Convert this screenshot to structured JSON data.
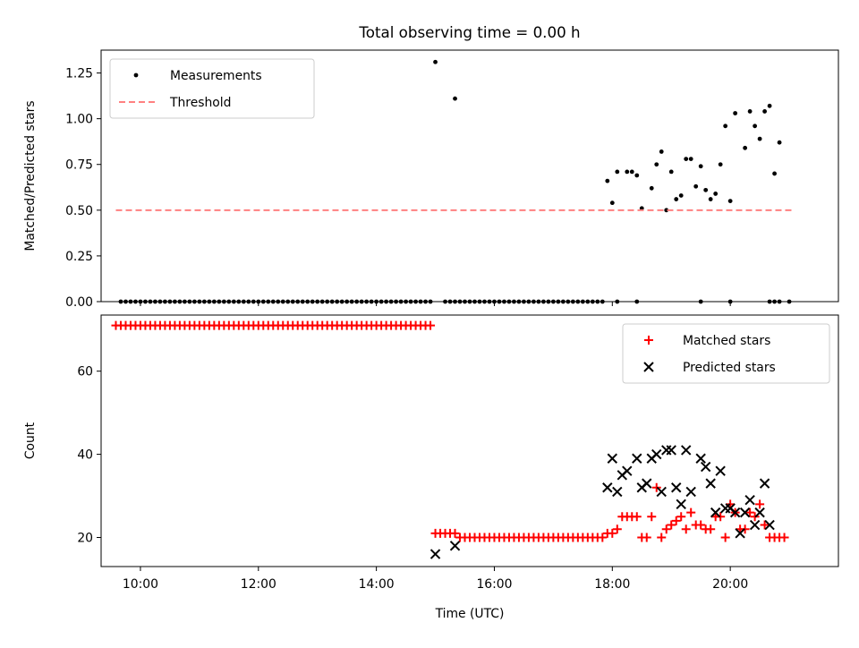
{
  "figure": {
    "title": "Total observing time = 0.00 h"
  },
  "chart_data": [
    {
      "type": "scatter",
      "title": "Total observing time = 0.00 h",
      "xlabel": "",
      "ylabel": "Matched/Predicted stars",
      "xlim": [
        "09:20",
        "21:50"
      ],
      "ylim": [
        0,
        1.375
      ],
      "xticks": [
        "10:00",
        "12:00",
        "14:00",
        "16:00",
        "18:00",
        "20:00"
      ],
      "yticks": [
        "0.00",
        "0.25",
        "0.50",
        "0.75",
        "1.00",
        "1.25"
      ],
      "legend_position": "top-left",
      "grid": false,
      "series": [
        {
          "name": "Measurements",
          "marker": "dot",
          "color": "#000000",
          "zero_times": [
            "09:40",
            "09:45",
            "09:50",
            "09:55",
            "10:00",
            "10:05",
            "10:10",
            "10:15",
            "10:20",
            "10:25",
            "10:30",
            "10:35",
            "10:40",
            "10:45",
            "10:50",
            "10:55",
            "11:00",
            "11:05",
            "11:10",
            "11:15",
            "11:20",
            "11:25",
            "11:30",
            "11:35",
            "11:40",
            "11:45",
            "11:50",
            "11:55",
            "12:00",
            "12:05",
            "12:10",
            "12:15",
            "12:20",
            "12:25",
            "12:30",
            "12:35",
            "12:40",
            "12:45",
            "12:50",
            "12:55",
            "13:00",
            "13:05",
            "13:10",
            "13:15",
            "13:20",
            "13:25",
            "13:30",
            "13:35",
            "13:40",
            "13:45",
            "13:50",
            "13:55",
            "14:00",
            "14:05",
            "14:10",
            "14:15",
            "14:20",
            "14:25",
            "14:30",
            "14:35",
            "14:40",
            "14:45",
            "14:50",
            "14:55",
            "15:10",
            "15:15",
            "15:20",
            "15:25",
            "15:30",
            "15:35",
            "15:40",
            "15:45",
            "15:50",
            "15:55",
            "16:00",
            "16:05",
            "16:10",
            "16:15",
            "16:20",
            "16:25",
            "16:30",
            "16:35",
            "16:40",
            "16:45",
            "16:50",
            "16:55",
            "17:00",
            "17:05",
            "17:10",
            "17:15",
            "17:20",
            "17:25",
            "17:30",
            "17:35",
            "17:40",
            "17:45",
            "17:50",
            "18:05",
            "18:25",
            "19:30",
            "20:00",
            "20:40",
            "20:45",
            "20:50",
            "21:00"
          ],
          "points": [
            [
              "15:00",
              1.31
            ],
            [
              "15:20",
              1.11
            ],
            [
              "17:55",
              0.66
            ],
            [
              "18:00",
              0.54
            ],
            [
              "18:05",
              0.71
            ],
            [
              "18:15",
              0.71
            ],
            [
              "18:20",
              0.71
            ],
            [
              "18:25",
              0.69
            ],
            [
              "18:30",
              0.51
            ],
            [
              "18:40",
              0.62
            ],
            [
              "18:45",
              0.75
            ],
            [
              "18:50",
              0.82
            ],
            [
              "18:55",
              0.5
            ],
            [
              "19:00",
              0.71
            ],
            [
              "19:05",
              0.56
            ],
            [
              "19:10",
              0.58
            ],
            [
              "19:15",
              0.78
            ],
            [
              "19:20",
              0.78
            ],
            [
              "19:25",
              0.63
            ],
            [
              "19:30",
              0.74
            ],
            [
              "19:35",
              0.61
            ],
            [
              "19:40",
              0.56
            ],
            [
              "19:45",
              0.59
            ],
            [
              "19:50",
              0.75
            ],
            [
              "19:55",
              0.96
            ],
            [
              "20:00",
              0.55
            ],
            [
              "20:05",
              1.03
            ],
            [
              "20:15",
              0.84
            ],
            [
              "20:20",
              1.04
            ],
            [
              "20:25",
              0.96
            ],
            [
              "20:30",
              0.89
            ],
            [
              "20:35",
              1.04
            ],
            [
              "20:40",
              1.07
            ],
            [
              "20:45",
              0.7
            ],
            [
              "20:50",
              0.87
            ]
          ]
        },
        {
          "name": "Threshold",
          "marker": "dashed-line",
          "color": "#ff8080",
          "points": [
            [
              "09:35",
              0.5
            ],
            [
              "21:05",
              0.5
            ]
          ]
        }
      ]
    },
    {
      "type": "scatter",
      "title": "",
      "xlabel": "Time (UTC)",
      "ylabel": "Count",
      "xlim": [
        "09:20",
        "21:50"
      ],
      "ylim": [
        13,
        73.5
      ],
      "xticks": [
        "10:00",
        "12:00",
        "14:00",
        "16:00",
        "18:00",
        "20:00"
      ],
      "yticks": [
        "20",
        "40",
        "60"
      ],
      "legend_position": "top-right",
      "grid": false,
      "series": [
        {
          "name": "Matched stars",
          "marker": "plus",
          "color": "#ff0000",
          "constant_runs": [
            {
              "value": 71,
              "from": "09:35",
              "to": "14:55",
              "step_minutes": 5
            },
            {
              "value": 20,
              "from": "15:25",
              "to": "17:50",
              "step_minutes": 5
            }
          ],
          "points": [
            [
              "15:00",
              21
            ],
            [
              "15:05",
              21
            ],
            [
              "15:10",
              21
            ],
            [
              "15:15",
              21
            ],
            [
              "15:20",
              21
            ],
            [
              "17:55",
              21
            ],
            [
              "18:00",
              21
            ],
            [
              "18:05",
              22
            ],
            [
              "18:10",
              25
            ],
            [
              "18:15",
              25
            ],
            [
              "18:20",
              25
            ],
            [
              "18:25",
              25
            ],
            [
              "18:30",
              20
            ],
            [
              "18:35",
              20
            ],
            [
              "18:40",
              25
            ],
            [
              "18:45",
              32
            ],
            [
              "18:50",
              20
            ],
            [
              "18:55",
              22
            ],
            [
              "19:00",
              23
            ],
            [
              "19:05",
              24
            ],
            [
              "19:10",
              25
            ],
            [
              "19:15",
              22
            ],
            [
              "19:20",
              26
            ],
            [
              "19:25",
              23
            ],
            [
              "19:30",
              23
            ],
            [
              "19:35",
              22
            ],
            [
              "19:40",
              22
            ],
            [
              "19:45",
              25
            ],
            [
              "19:50",
              25
            ],
            [
              "19:55",
              20
            ],
            [
              "20:00",
              28
            ],
            [
              "20:05",
              26
            ],
            [
              "20:10",
              22
            ],
            [
              "20:15",
              22
            ],
            [
              "20:20",
              26
            ],
            [
              "20:25",
              25
            ],
            [
              "20:30",
              28
            ],
            [
              "20:35",
              23
            ],
            [
              "20:40",
              20
            ],
            [
              "20:45",
              20
            ],
            [
              "20:50",
              20
            ],
            [
              "20:55",
              20
            ]
          ]
        },
        {
          "name": "Predicted stars",
          "marker": "x",
          "color": "#000000",
          "points": [
            [
              "15:00",
              16
            ],
            [
              "15:20",
              18
            ],
            [
              "17:55",
              32
            ],
            [
              "18:00",
              39
            ],
            [
              "18:05",
              31
            ],
            [
              "18:10",
              35
            ],
            [
              "18:15",
              36
            ],
            [
              "18:25",
              39
            ],
            [
              "18:30",
              32
            ],
            [
              "18:35",
              33
            ],
            [
              "18:40",
              39
            ],
            [
              "18:45",
              40
            ],
            [
              "18:50",
              31
            ],
            [
              "18:55",
              41
            ],
            [
              "19:00",
              41
            ],
            [
              "19:05",
              32
            ],
            [
              "19:10",
              28
            ],
            [
              "19:15",
              41
            ],
            [
              "19:20",
              31
            ],
            [
              "19:30",
              39
            ],
            [
              "19:35",
              37
            ],
            [
              "19:40",
              33
            ],
            [
              "19:45",
              26
            ],
            [
              "19:50",
              36
            ],
            [
              "19:55",
              27
            ],
            [
              "20:00",
              27
            ],
            [
              "20:05",
              26
            ],
            [
              "20:10",
              21
            ],
            [
              "20:15",
              26
            ],
            [
              "20:20",
              29
            ],
            [
              "20:25",
              23
            ],
            [
              "20:30",
              26
            ],
            [
              "20:35",
              33
            ],
            [
              "20:40",
              23
            ]
          ]
        }
      ]
    }
  ]
}
